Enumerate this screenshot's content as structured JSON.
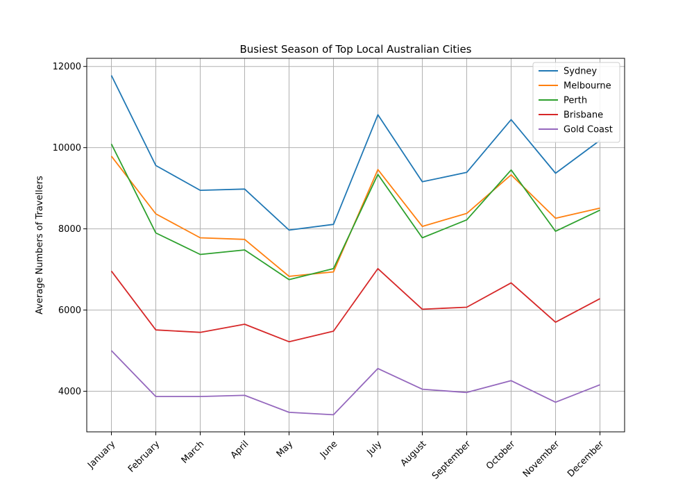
{
  "chart_data": {
    "type": "line",
    "title": "Busiest Season of Top Local Australian Cities",
    "xlabel": "",
    "ylabel": "Average Numbers of Travellers",
    "categories": [
      "January",
      "February",
      "March",
      "April",
      "May",
      "June",
      "July",
      "August",
      "September",
      "October",
      "November",
      "December"
    ],
    "ylim": [
      3000,
      12200
    ],
    "yticks": [
      4000,
      6000,
      8000,
      10000,
      12000
    ],
    "grid": true,
    "legend_position": "top-right",
    "series": [
      {
        "name": "Sydney",
        "color": "#1f77b4",
        "values": [
          11780,
          9560,
          8950,
          8980,
          7970,
          8110,
          10810,
          9160,
          9390,
          10690,
          9370,
          10180
        ]
      },
      {
        "name": "Melbourne",
        "color": "#ff7f0e",
        "values": [
          9790,
          8370,
          7780,
          7740,
          6830,
          6940,
          9460,
          8060,
          8380,
          9330,
          8260,
          8510
        ]
      },
      {
        "name": "Perth",
        "color": "#2ca02c",
        "values": [
          10090,
          7900,
          7370,
          7480,
          6750,
          7020,
          9340,
          7780,
          8220,
          9450,
          7940,
          8460
        ]
      },
      {
        "name": "Brisbane",
        "color": "#d62728",
        "values": [
          6960,
          5510,
          5450,
          5650,
          5220,
          5480,
          7020,
          6020,
          6070,
          6670,
          5700,
          6280
        ]
      },
      {
        "name": "Gold Coast",
        "color": "#9467bd",
        "values": [
          5000,
          3870,
          3870,
          3900,
          3480,
          3420,
          4560,
          4050,
          3970,
          4260,
          3730,
          4160
        ]
      }
    ]
  }
}
